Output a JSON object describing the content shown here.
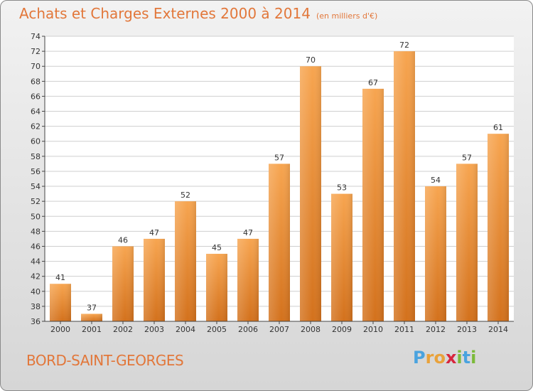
{
  "title": "Achats et Charges Externes 2000 à 2014",
  "subtitle": "(en milliers d'€)",
  "place": "BORD-SAINT-GEORGES",
  "logo": {
    "text": "Proxiti",
    "letters": [
      "P",
      "r",
      "o",
      "x",
      "i",
      "t",
      "i"
    ],
    "colors": [
      "#4aa3df",
      "#e9a23b",
      "#e9a23b",
      "#d7263d",
      "#7cba3a",
      "#4aa3df",
      "#7cba3a"
    ]
  },
  "colors": {
    "bar_top": "#f7a550",
    "bar_bottom": "#d3711c",
    "text": "#e2773a"
  },
  "chart_data": {
    "type": "bar",
    "categories": [
      "2000",
      "2001",
      "2002",
      "2003",
      "2004",
      "2005",
      "2006",
      "2007",
      "2008",
      "2009",
      "2010",
      "2011",
      "2012",
      "2013",
      "2014"
    ],
    "values": [
      41,
      37,
      46,
      47,
      52,
      45,
      47,
      57,
      70,
      53,
      67,
      72,
      54,
      57,
      61
    ],
    "ylim": [
      36,
      74
    ],
    "yticks": [
      36,
      38,
      40,
      42,
      44,
      46,
      48,
      50,
      52,
      54,
      56,
      58,
      60,
      62,
      64,
      66,
      68,
      70,
      72,
      74
    ],
    "grid": true,
    "xlabel": "",
    "ylabel": ""
  }
}
